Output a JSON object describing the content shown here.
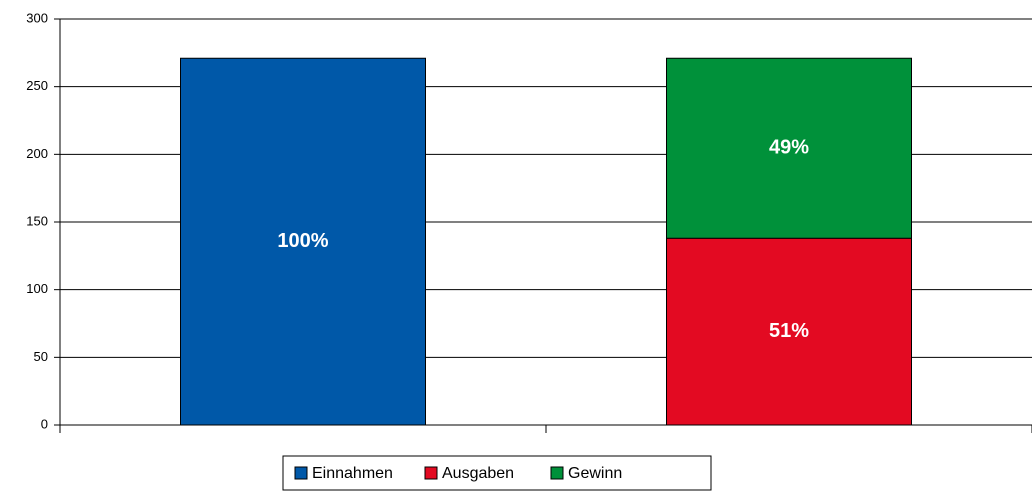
{
  "chart_data": {
    "type": "stacked_bar",
    "categories": [
      null,
      null
    ],
    "series": [
      {
        "name": "Einnahmen",
        "color": "#0058a8",
        "values": [
          271,
          null
        ],
        "value_labels": [
          "100%",
          null
        ]
      },
      {
        "name": "Ausgaben",
        "color": "#e30a22",
        "values": [
          null,
          138
        ],
        "value_labels": [
          null,
          "51%"
        ]
      },
      {
        "name": "Gewinn",
        "color": "#00913a",
        "values": [
          null,
          133
        ],
        "value_labels": [
          null,
          "49%"
        ]
      }
    ],
    "ylim": [
      0,
      300
    ],
    "yticks": [
      0,
      50,
      100,
      150,
      200,
      250,
      300
    ],
    "grid": true,
    "legend": "bottom"
  }
}
